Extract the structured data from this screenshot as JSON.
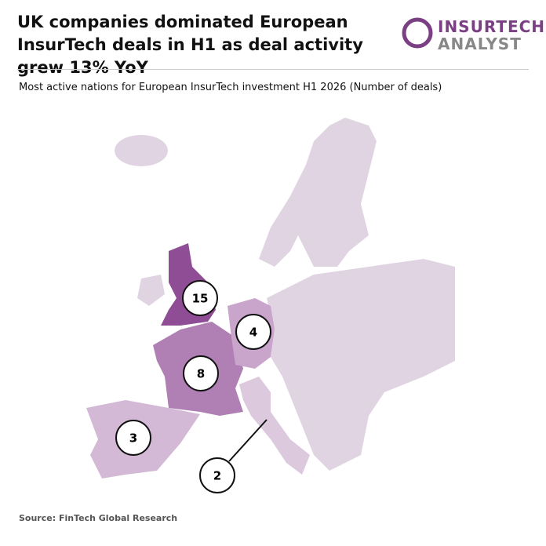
{
  "header": {
    "title": "UK companies dominated European InsurTech deals in H1 as deal activity grew 13% YoY",
    "logo_top": "INSURTECH",
    "logo_bottom": "ANALYST",
    "subtitle": "Most active nations for European InsurTech investment H1 2026 (Number of deals)"
  },
  "markers": [
    {
      "country": "UK",
      "value": 15
    },
    {
      "country": "France",
      "value": 8
    },
    {
      "country": "Germany",
      "value": 4
    },
    {
      "country": "Spain",
      "value": 3
    },
    {
      "country": "Italy",
      "value": 2
    }
  ],
  "source": "Source: FinTech Global Research"
}
